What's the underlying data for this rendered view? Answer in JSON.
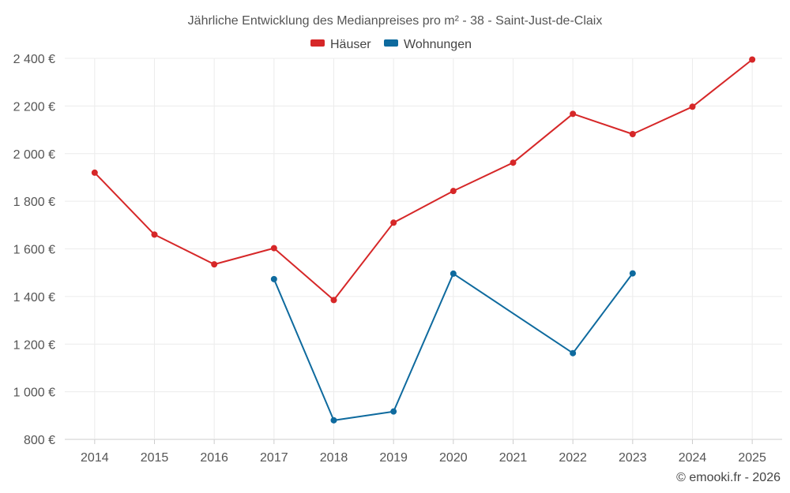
{
  "chart_data": {
    "type": "line",
    "title": "Jährliche Entwicklung des Medianpreises pro m² - 38 - Saint-Just-de-Claix",
    "categories": [
      "2014",
      "2015",
      "2016",
      "2017",
      "2018",
      "2019",
      "2020",
      "2021",
      "2022",
      "2023",
      "2024",
      "2025"
    ],
    "series": [
      {
        "name": "Häuser",
        "color": "#d62728",
        "values": [
          1920,
          1660,
          1535,
          1603,
          1385,
          1710,
          1843,
          1962,
          2167,
          2082,
          2197,
          2395
        ]
      },
      {
        "name": "Wohnungen",
        "color": "#0e6a9e",
        "values": [
          null,
          null,
          null,
          1473,
          880,
          917,
          1496,
          null,
          1162,
          1497,
          null,
          null
        ]
      }
    ],
    "ylim": [
      800,
      2400
    ],
    "yticks": [
      800,
      1000,
      1200,
      1400,
      1600,
      1800,
      2000,
      2200,
      2400
    ],
    "ytick_labels": [
      "800 €",
      "1 000 €",
      "1 200 €",
      "1 400 €",
      "1 600 €",
      "1 800 €",
      "2 000 €",
      "2 200 €",
      "2 400 €"
    ],
    "legend_position": "top-center",
    "grid": true
  },
  "credit": "© emooki.fr - 2026"
}
